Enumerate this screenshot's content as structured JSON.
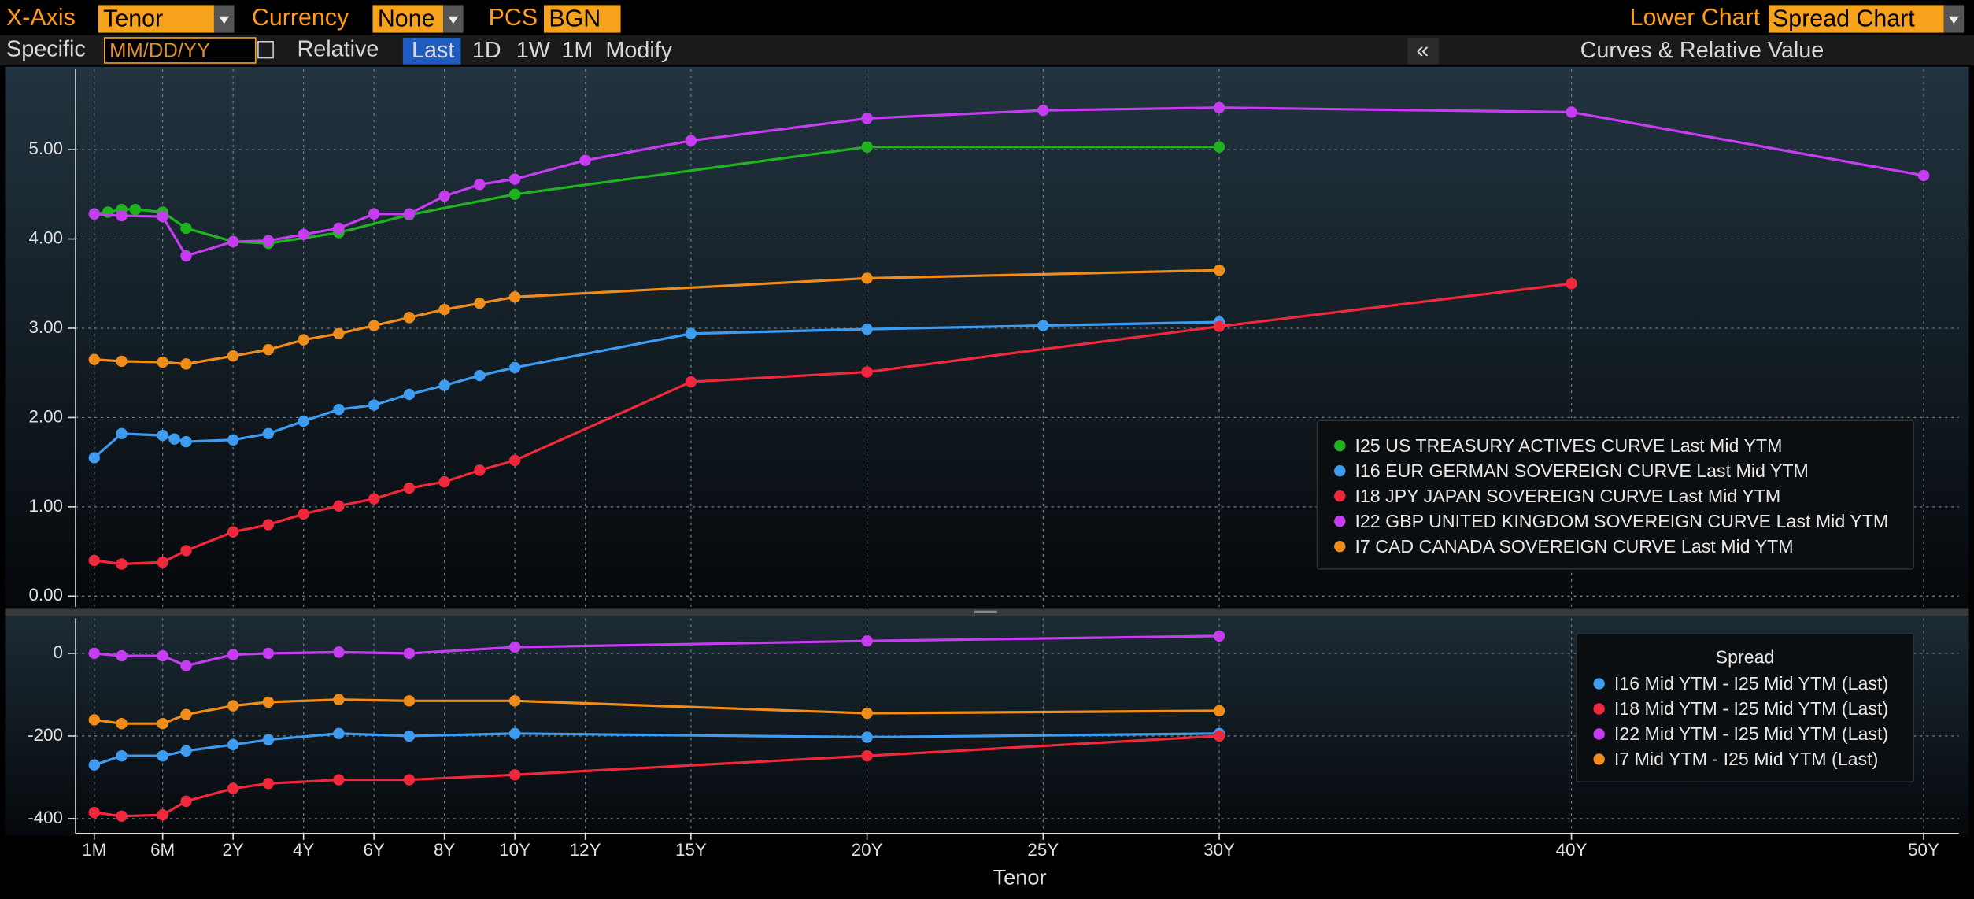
{
  "toolbar": {
    "x_axis_label": "X-Axis",
    "x_axis_value": "Tenor",
    "currency_label": "Currency",
    "currency_value": "None",
    "pcs_label": "PCS",
    "pcs_value": "BGN",
    "lower_chart_label": "Lower Chart",
    "lower_chart_value": "Spread Chart",
    "specific_label": "Specific",
    "date_placeholder": "MM/DD/YY",
    "relative_label": "Relative",
    "periods": [
      "Last",
      "1D",
      "1W",
      "1M"
    ],
    "modify": "Modify",
    "collapse": "«",
    "panel_title": "Curves & Relative Value"
  },
  "chart_data": [
    {
      "type": "line",
      "grid": true,
      "legend": "lower-right",
      "ylim": [
        -0.12,
        5.9
      ],
      "yticks": [
        {
          "value": 0,
          "label": "0.00"
        },
        {
          "value": 1,
          "label": "1.00"
        },
        {
          "value": 2,
          "label": "2.00"
        },
        {
          "value": 3,
          "label": "3.00"
        },
        {
          "value": 4,
          "label": "4.00"
        },
        {
          "value": 5,
          "label": "5.00"
        }
      ],
      "series": [
        {
          "name": "I25 US TREASURY ACTIVES CURVE Last Mid YTM",
          "color": "#1fb31f",
          "x": [
            0.0833,
            0.1667,
            0.25,
            0.3333,
            0.5,
            1,
            2,
            3,
            5,
            7,
            10,
            20,
            30
          ],
          "values": [
            4.28,
            4.3,
            4.33,
            4.33,
            4.3,
            4.12,
            3.97,
            3.95,
            4.07,
            4.27,
            4.5,
            5.03,
            5.03
          ]
        },
        {
          "name": "I16 EUR GERMAN SOVEREIGN CURVE Last Mid YTM",
          "color": "#3d9bf0",
          "x": [
            0.0833,
            0.25,
            0.5,
            0.75,
            1,
            2,
            3,
            4,
            5,
            6,
            7,
            8,
            9,
            10,
            15,
            20,
            25,
            30
          ],
          "values": [
            1.55,
            1.82,
            1.8,
            1.76,
            1.73,
            1.75,
            1.82,
            1.96,
            2.09,
            2.14,
            2.26,
            2.36,
            2.47,
            2.56,
            2.94,
            2.99,
            3.03,
            3.07
          ]
        },
        {
          "name": "I18 JPY JAPAN SOVEREIGN CURVE Last Mid YTM",
          "color": "#f0283c",
          "x": [
            0.0833,
            0.25,
            0.5,
            1,
            2,
            3,
            4,
            5,
            6,
            7,
            8,
            9,
            10,
            15,
            20,
            30,
            40
          ],
          "values": [
            0.4,
            0.36,
            0.38,
            0.51,
            0.72,
            0.8,
            0.92,
            1.01,
            1.09,
            1.21,
            1.28,
            1.41,
            1.52,
            2.4,
            2.51,
            3.02,
            3.5
          ]
        },
        {
          "name": "I22 GBP UNITED KINGDOM SOVEREIGN CURVE Last Mid YTM",
          "color": "#c63cf0",
          "x": [
            0.0833,
            0.25,
            0.5,
            1,
            2,
            3,
            4,
            5,
            6,
            7,
            8,
            9,
            10,
            12,
            15,
            20,
            25,
            30,
            40,
            50
          ],
          "values": [
            4.28,
            4.26,
            4.25,
            3.81,
            3.97,
            3.98,
            4.05,
            4.12,
            4.28,
            4.28,
            4.48,
            4.61,
            4.67,
            4.88,
            5.1,
            5.35,
            5.44,
            5.47,
            5.42,
            4.71
          ]
        },
        {
          "name": "I7 CAD CANADA SOVEREIGN CURVE Last Mid YTM",
          "color": "#f08c1a",
          "x": [
            0.0833,
            0.25,
            0.5,
            1,
            2,
            3,
            4,
            5,
            6,
            7,
            8,
            9,
            10,
            20,
            30
          ],
          "values": [
            2.65,
            2.63,
            2.62,
            2.6,
            2.69,
            2.76,
            2.87,
            2.94,
            3.03,
            3.12,
            3.21,
            3.28,
            3.35,
            3.56,
            3.65
          ]
        }
      ]
    },
    {
      "type": "line",
      "grid": true,
      "legend": "upper-right",
      "legend_title": "Spread",
      "x_label": "Tenor",
      "xlim": [
        0,
        51
      ],
      "xticks": [
        {
          "value": 0.0833,
          "label": "1M"
        },
        {
          "value": 0.5,
          "label": "6M"
        },
        {
          "value": 2,
          "label": "2Y"
        },
        {
          "value": 4,
          "label": "4Y"
        },
        {
          "value": 6,
          "label": "6Y"
        },
        {
          "value": 8,
          "label": "8Y"
        },
        {
          "value": 10,
          "label": "10Y"
        },
        {
          "value": 12,
          "label": "12Y"
        },
        {
          "value": 15,
          "label": "15Y"
        },
        {
          "value": 20,
          "label": "20Y"
        },
        {
          "value": 25,
          "label": "25Y"
        },
        {
          "value": 30,
          "label": "30Y"
        },
        {
          "value": 40,
          "label": "40Y"
        },
        {
          "value": 50,
          "label": "50Y"
        }
      ],
      "ylim": [
        -436,
        85
      ],
      "yticks": [
        0,
        -200,
        -400
      ],
      "series": [
        {
          "name": "I16 Mid YTM - I25 Mid YTM (Last)",
          "color": "#3d9bf0",
          "x": [
            0.0833,
            0.25,
            0.5,
            1,
            2,
            3,
            5,
            7,
            10,
            20,
            30
          ],
          "values": [
            -270,
            -248,
            -248,
            -236,
            -221,
            -209,
            -194,
            -200,
            -194,
            -203,
            -194
          ]
        },
        {
          "name": "I18 Mid YTM - I25 Mid YTM (Last)",
          "color": "#f0283c",
          "x": [
            0.0833,
            0.25,
            0.5,
            1,
            2,
            3,
            5,
            7,
            10,
            20,
            30
          ],
          "values": [
            -385,
            -394,
            -391,
            -358,
            -327,
            -315,
            -306,
            -306,
            -294,
            -248,
            -200
          ]
        },
        {
          "name": "I22 Mid YTM - I25 Mid YTM (Last)",
          "color": "#c63cf0",
          "x": [
            0.0833,
            0.25,
            0.5,
            1,
            2,
            3,
            5,
            7,
            10,
            20,
            30
          ],
          "values": [
            0,
            -6,
            -6,
            -30,
            -3,
            0,
            3,
            0,
            15,
            30,
            42
          ]
        },
        {
          "name": "I7 Mid YTM - I25 Mid YTM (Last)",
          "color": "#f08c1a",
          "x": [
            0.0833,
            0.25,
            0.5,
            1,
            2,
            3,
            5,
            7,
            10,
            20,
            30
          ],
          "values": [
            -161,
            -170,
            -170,
            -148,
            -127,
            -118,
            -112,
            -115,
            -115,
            -145,
            -139
          ]
        }
      ]
    }
  ]
}
